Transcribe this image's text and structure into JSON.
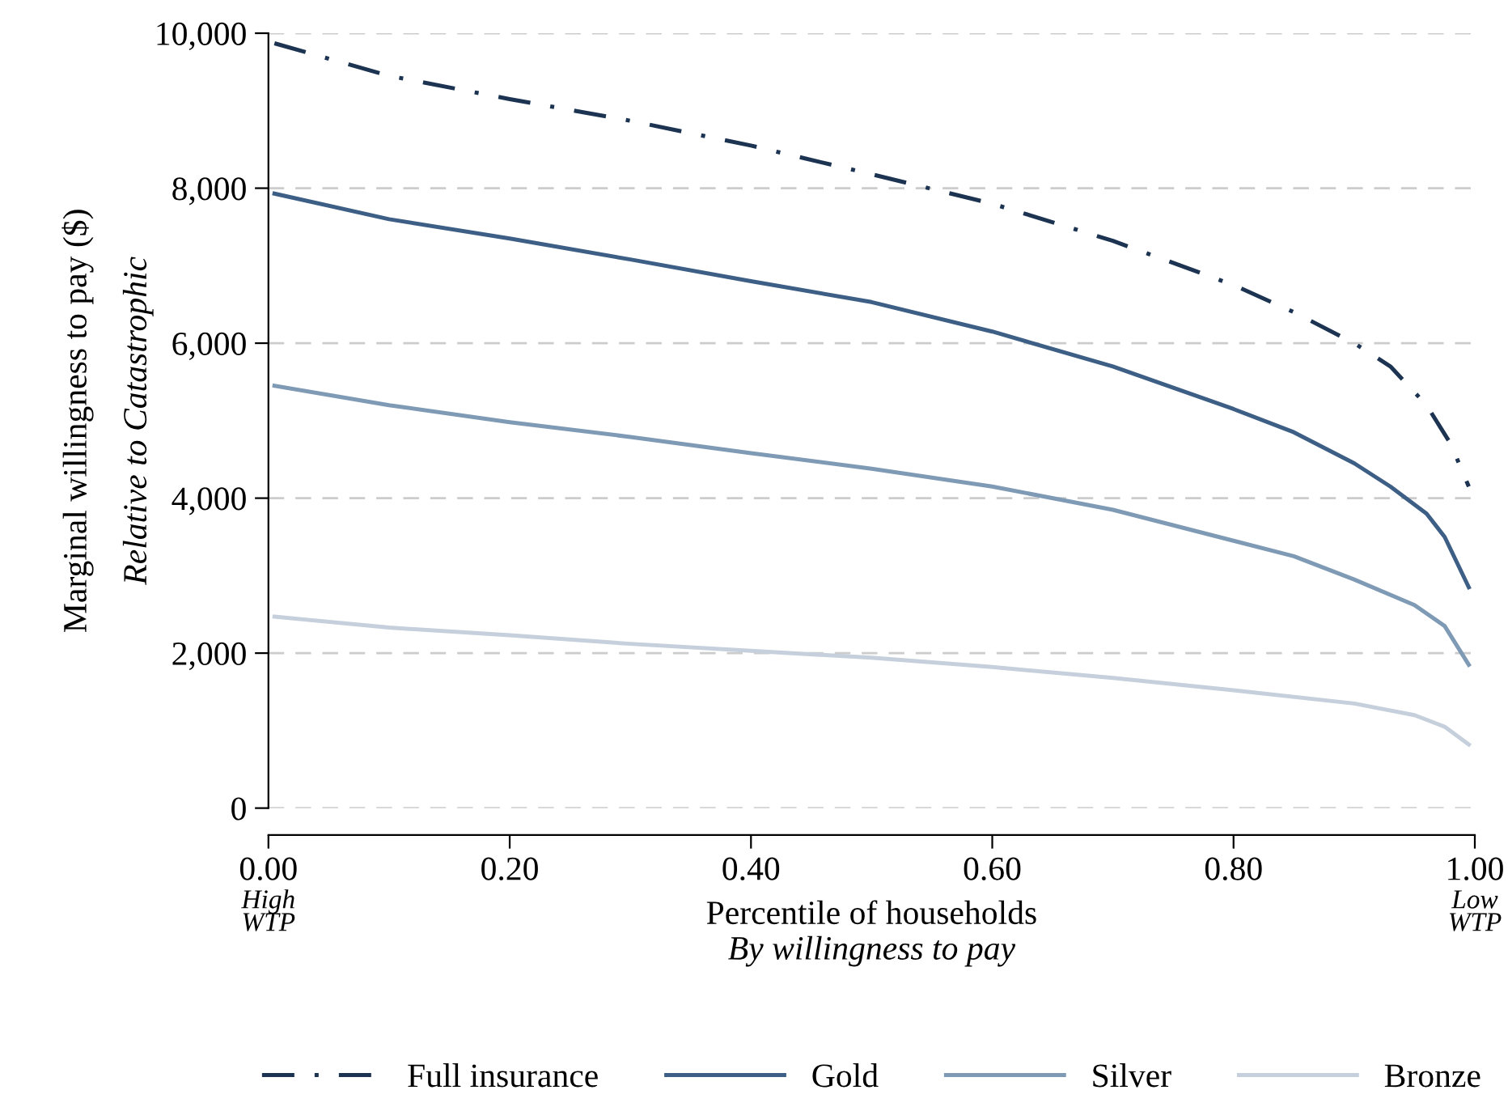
{
  "chart_data": {
    "type": "line",
    "xlabel": "Percentile of households",
    "ylabel": "Marginal willingness to pay ($)",
    "annotations": [
      "Relative to Catastrophic",
      "By willingness to pay",
      "High\nWTP",
      "Low\nWTP"
    ],
    "xlim": [
      0,
      1
    ],
    "ylim": [
      0,
      10000
    ],
    "xticks": [
      {
        "value": 0,
        "label": "0.00"
      },
      {
        "value": 0.2,
        "label": "0.20"
      },
      {
        "value": 0.4,
        "label": "0.40"
      },
      {
        "value": 0.6,
        "label": "0.60"
      },
      {
        "value": 0.8,
        "label": "0.80"
      },
      {
        "value": 1,
        "label": "1.00"
      }
    ],
    "yticks": [
      0,
      {
        "value": 2000,
        "label": "2,000"
      },
      {
        "value": 4000,
        "label": "4,000"
      },
      {
        "value": 6000,
        "label": "6,000"
      },
      {
        "value": 8000,
        "label": "8,000"
      },
      {
        "value": 10000,
        "label": "10,000"
      }
    ],
    "grid": "y",
    "legend": "bottom",
    "series": [
      {
        "name": "Full insurance",
        "color": "#1c3452",
        "line_style": "dashdot",
        "x": [
          0.005,
          0.1,
          0.2,
          0.3,
          0.4,
          0.5,
          0.6,
          0.7,
          0.8,
          0.85,
          0.9,
          0.93,
          0.96,
          0.98,
          0.995
        ],
        "values": [
          9870,
          9450,
          9150,
          8870,
          8550,
          8180,
          7800,
          7320,
          6750,
          6400,
          6000,
          5700,
          5200,
          4700,
          4150
        ]
      },
      {
        "name": "Gold",
        "color": "#3e5f85",
        "line_style": "solid",
        "x": [
          0.005,
          0.1,
          0.2,
          0.3,
          0.4,
          0.5,
          0.6,
          0.7,
          0.8,
          0.85,
          0.9,
          0.93,
          0.96,
          0.975,
          0.995
        ],
        "values": [
          7930,
          7600,
          7350,
          7080,
          6800,
          6530,
          6150,
          5700,
          5150,
          4850,
          4450,
          4150,
          3800,
          3500,
          2850
        ]
      },
      {
        "name": "Silver",
        "color": "#7f9ab5",
        "line_style": "solid",
        "x": [
          0.005,
          0.1,
          0.2,
          0.3,
          0.4,
          0.5,
          0.6,
          0.7,
          0.8,
          0.85,
          0.9,
          0.95,
          0.975,
          0.995
        ],
        "values": [
          5450,
          5200,
          4980,
          4790,
          4580,
          4380,
          4150,
          3850,
          3450,
          3250,
          2950,
          2620,
          2350,
          1850
        ]
      },
      {
        "name": "Bronze",
        "color": "#c5d0dc",
        "line_style": "solid",
        "x": [
          0.005,
          0.1,
          0.2,
          0.3,
          0.4,
          0.5,
          0.6,
          0.7,
          0.8,
          0.9,
          0.95,
          0.975,
          0.995
        ],
        "values": [
          2470,
          2330,
          2230,
          2120,
          2030,
          1940,
          1820,
          1680,
          1520,
          1350,
          1200,
          1050,
          820
        ]
      }
    ]
  }
}
